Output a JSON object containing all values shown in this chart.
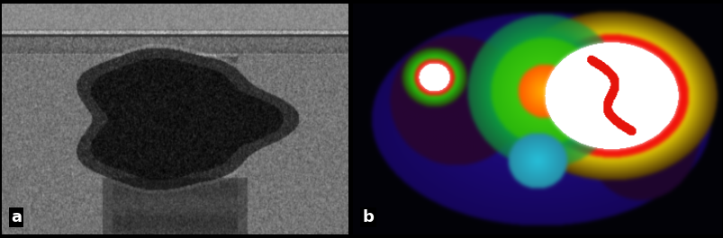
{
  "fig_width": 8.04,
  "fig_height": 2.65,
  "dpi": 100,
  "border_color": "#ffffff",
  "label_a": "a",
  "label_b": "b",
  "label_fontsize": 13,
  "label_color": "#ffffff",
  "label_bg": "#000000",
  "background": "#000000"
}
